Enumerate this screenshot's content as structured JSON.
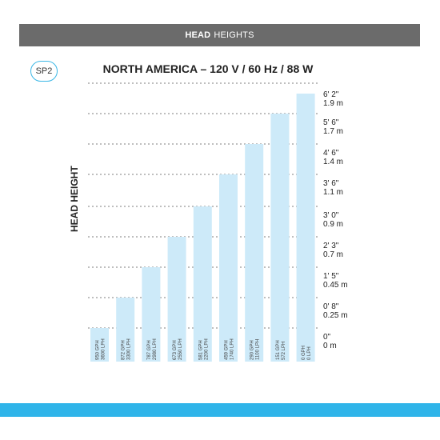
{
  "header": {
    "bold": "HEAD",
    "rest": "HEIGHTS"
  },
  "model": "SP2",
  "chart_data": {
    "type": "bar",
    "title": "NORTH AMERICA – 120 V / 60 Hz / 88 W",
    "ylabel": "HEAD HEIGHT",
    "xlabel": "",
    "grid": true,
    "ylim_m": [
      0,
      1.9
    ],
    "bar_color": "#cdeaf9",
    "categories": [
      [
        "950 GPH",
        "3600 LPH"
      ],
      [
        "872 GPH",
        "3300 LPH"
      ],
      [
        "787 GPH",
        "2980 LPH"
      ],
      [
        "673 GPH",
        "2550 LPH"
      ],
      [
        "581 GPH",
        "2200 LPH"
      ],
      [
        "459 GPH",
        "1740 LPH"
      ],
      [
        "290 GPH",
        "1100 LPH"
      ],
      [
        "151 GPH",
        "572 LPH"
      ],
      [
        "0 GPH",
        "0 LPH"
      ]
    ],
    "values_level": [
      0,
      1,
      2,
      3,
      4,
      5,
      6,
      7,
      8
    ],
    "y_ticks": [
      {
        "ft": "0\"",
        "m": "0 m"
      },
      {
        "ft": "0' 8\"",
        "m": "0.25 m"
      },
      {
        "ft": "1' 5\"",
        "m": "0.45 m"
      },
      {
        "ft": "2' 3\"",
        "m": "0.7 m"
      },
      {
        "ft": "3' 0\"",
        "m": "0.9 m"
      },
      {
        "ft": "3' 6\"",
        "m": "1.1 m"
      },
      {
        "ft": "4' 6\"",
        "m": "1.4 m"
      },
      {
        "ft": "5' 6\"",
        "m": "1.7 m"
      },
      {
        "ft": "6' 2\"",
        "m": "1.9 m"
      }
    ]
  }
}
